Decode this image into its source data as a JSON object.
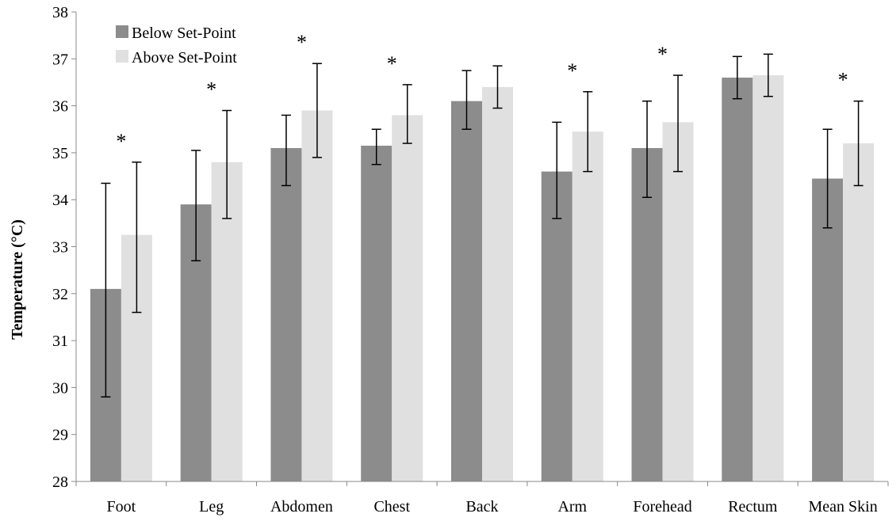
{
  "chart_data": {
    "type": "bar",
    "ylabel": "Temperature (°C)",
    "ylim": [
      28,
      38
    ],
    "ytick_step": 1,
    "categories": [
      "Foot",
      "Leg",
      "Abdomen",
      "Chest",
      "Back",
      "Arm",
      "Forehead",
      "Rectum",
      "Mean Skin"
    ],
    "series": [
      {
        "name": "Below Set-Point",
        "color": "#8c8c8c",
        "values": [
          32.1,
          33.9,
          35.1,
          35.15,
          36.1,
          34.6,
          35.1,
          36.6,
          34.45
        ],
        "err_low": [
          29.8,
          32.7,
          34.3,
          34.75,
          35.5,
          33.6,
          34.05,
          36.15,
          33.4
        ],
        "err_high": [
          34.35,
          35.05,
          35.8,
          35.5,
          36.75,
          35.65,
          36.1,
          37.05,
          35.5
        ]
      },
      {
        "name": "Above Set-Point",
        "color": "#e0e0e0",
        "values": [
          33.25,
          34.8,
          35.9,
          35.8,
          36.4,
          35.45,
          35.65,
          36.65,
          35.2
        ],
        "err_low": [
          31.6,
          33.6,
          34.9,
          35.2,
          35.95,
          34.6,
          34.6,
          36.2,
          34.3
        ],
        "err_high": [
          34.8,
          35.9,
          36.9,
          36.45,
          36.85,
          36.3,
          36.65,
          37.1,
          36.1
        ]
      }
    ],
    "significance": {
      "marker": "*",
      "categories": [
        "Foot",
        "Leg",
        "Abdomen",
        "Chest",
        "Arm",
        "Forehead",
        "Mean Skin"
      ]
    },
    "legend_position": "top-left",
    "grid": false
  }
}
